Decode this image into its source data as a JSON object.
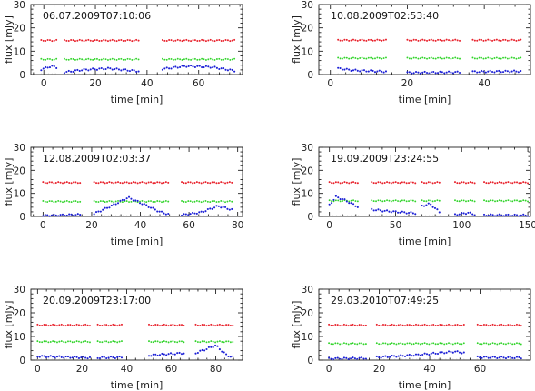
{
  "figure": {
    "xlabel": "time [min]",
    "ylabel": "flux [mJy]",
    "colors": {
      "red": "#e8212b",
      "green": "#31d42a",
      "blue": "#1b1fd6",
      "gray": "#9a9a9a",
      "axis": "#222222"
    }
  },
  "chart_data": [
    {
      "type": "scatter",
      "title": "06.07.2009T07:10:06",
      "xlabel": "time [min]",
      "ylabel": "flux [mJy]",
      "xlim": [
        -5,
        77
      ],
      "ylim": [
        0,
        30
      ],
      "xticks": [
        0,
        20,
        40,
        60
      ],
      "yticks": [
        0,
        10,
        20,
        30
      ],
      "segments": [
        [
          -1,
          5
        ],
        [
          8,
          37
        ],
        [
          46,
          74
        ]
      ],
      "series": [
        {
          "color": "red",
          "knots": [
            [
              -1,
              14.6
            ],
            [
              74,
              14.6
            ]
          ]
        },
        {
          "color": "green",
          "knots": [
            [
              -1,
              6.5
            ],
            [
              74,
              6.5
            ]
          ]
        },
        {
          "color": "blue",
          "knots": [
            [
              -1,
              2.2
            ],
            [
              3,
              3.6
            ],
            [
              5,
              3.0
            ],
            [
              8,
              1.0
            ],
            [
              15,
              2.0
            ],
            [
              25,
              2.6
            ],
            [
              37,
              1.4
            ],
            [
              46,
              2.4
            ],
            [
              55,
              3.6
            ],
            [
              65,
              3.2
            ],
            [
              74,
              1.6
            ]
          ]
        }
      ]
    },
    {
      "type": "scatter",
      "title": "10.08.2009T02:53:40",
      "xlabel": "time [min]",
      "ylabel": "flux [mJy]",
      "xlim": [
        -3,
        52
      ],
      "ylim": [
        0,
        30
      ],
      "xticks": [
        0,
        20,
        40
      ],
      "yticks": [
        0,
        10,
        20,
        30
      ],
      "segments": [
        [
          2,
          15
        ],
        [
          20,
          34
        ],
        [
          37,
          50
        ]
      ],
      "series": [
        {
          "color": "red",
          "knots": [
            [
              2,
              14.7
            ],
            [
              50,
              14.7
            ]
          ]
        },
        {
          "color": "green",
          "knots": [
            [
              2,
              7.0
            ],
            [
              50,
              7.0
            ]
          ]
        },
        {
          "color": "blue",
          "knots": [
            [
              2,
              2.6
            ],
            [
              6,
              1.8
            ],
            [
              15,
              1.2
            ],
            [
              20,
              0.8
            ],
            [
              34,
              1.0
            ],
            [
              37,
              1.2
            ],
            [
              50,
              1.4
            ]
          ]
        }
      ]
    },
    {
      "type": "scatter",
      "title": "12.08.2009T02:03:37",
      "xlabel": "time [min]",
      "ylabel": "flux [mJy]",
      "xlim": [
        -5,
        82
      ],
      "ylim": [
        0,
        30
      ],
      "xticks": [
        0,
        20,
        40,
        60,
        80
      ],
      "yticks": [
        0,
        10,
        20,
        30
      ],
      "segments": [
        [
          0,
          16
        ],
        [
          21,
          52
        ],
        [
          57,
          78
        ]
      ],
      "series": [
        {
          "color": "red",
          "knots": [
            [
              0,
              14.7
            ],
            [
              78,
              14.7
            ]
          ]
        },
        {
          "color": "green",
          "knots": [
            [
              0,
              6.5
            ],
            [
              78,
              6.5
            ]
          ]
        },
        {
          "color": "blue",
          "knots": [
            [
              0,
              0.4
            ],
            [
              16,
              0.8
            ],
            [
              21,
              1.2
            ],
            [
              28,
              4.5
            ],
            [
              35,
              8.2
            ],
            [
              42,
              5.0
            ],
            [
              48,
              2.0
            ],
            [
              52,
              0.8
            ],
            [
              57,
              0.6
            ],
            [
              65,
              1.8
            ],
            [
              72,
              4.5
            ],
            [
              78,
              2.8
            ]
          ]
        }
      ]
    },
    {
      "type": "scatter",
      "title": "19.09.2009T23:24:55",
      "xlabel": "time [min]",
      "ylabel": "flux [mJy]",
      "xlim": [
        -8,
        152
      ],
      "ylim": [
        0,
        30
      ],
      "xticks": [
        0,
        50,
        100,
        150
      ],
      "yticks": [
        0,
        10,
        20,
        30
      ],
      "segments": [
        [
          0,
          22
        ],
        [
          32,
          65
        ],
        [
          70,
          84
        ],
        [
          95,
          110
        ],
        [
          117,
          150
        ]
      ],
      "series": [
        {
          "color": "red",
          "knots": [
            [
              0,
              14.7
            ],
            [
              150,
              14.7
            ]
          ]
        },
        {
          "color": "green",
          "knots": [
            [
              0,
              6.8
            ],
            [
              150,
              6.8
            ]
          ]
        },
        {
          "color": "blue",
          "knots": [
            [
              0,
              5.0
            ],
            [
              5,
              8.5
            ],
            [
              12,
              7.0
            ],
            [
              22,
              4.0
            ],
            [
              32,
              3.0
            ],
            [
              45,
              2.2
            ],
            [
              65,
              1.4
            ],
            [
              70,
              4.5
            ],
            [
              76,
              5.5
            ],
            [
              84,
              1.5
            ],
            [
              95,
              0.8
            ],
            [
              105,
              1.6
            ],
            [
              110,
              0.8
            ],
            [
              117,
              0.6
            ],
            [
              150,
              0.5
            ]
          ]
        }
      ]
    },
    {
      "type": "scatter",
      "title": "20.09.2009T23:17:00",
      "xlabel": "time [min]",
      "ylabel": "flux [mJy]",
      "xlim": [
        -3,
        92
      ],
      "ylim": [
        0,
        30
      ],
      "xticks": [
        0,
        20,
        40,
        60,
        80
      ],
      "yticks": [
        0,
        10,
        20,
        30
      ],
      "segments": [
        [
          0,
          24
        ],
        [
          27,
          38
        ],
        [
          50,
          66
        ],
        [
          71,
          88
        ]
      ],
      "series": [
        {
          "color": "red",
          "knots": [
            [
              0,
              14.8
            ],
            [
              88,
              14.8
            ]
          ]
        },
        {
          "color": "green",
          "knots": [
            [
              0,
              7.8
            ],
            [
              88,
              7.8
            ]
          ]
        },
        {
          "color": "blue",
          "knots": [
            [
              0,
              1.6
            ],
            [
              24,
              1.0
            ],
            [
              27,
              1.0
            ],
            [
              38,
              1.2
            ],
            [
              50,
              2.0
            ],
            [
              66,
              3.0
            ],
            [
              71,
              3.0
            ],
            [
              80,
              6.2
            ],
            [
              85,
              2.0
            ],
            [
              88,
              1.2
            ]
          ]
        }
      ]
    },
    {
      "type": "scatter",
      "title": "29.03.2010T07:49:25",
      "xlabel": "time [min]",
      "ylabel": "flux [mJy]",
      "xlim": [
        -4,
        80
      ],
      "ylim": [
        0,
        30
      ],
      "xticks": [
        0,
        20,
        40,
        60
      ],
      "yticks": [
        0,
        10,
        20,
        30
      ],
      "segments": [
        [
          0,
          15
        ],
        [
          19,
          54
        ],
        [
          59,
          77
        ]
      ],
      "series": [
        {
          "color": "red",
          "knots": [
            [
              0,
              14.8
            ],
            [
              77,
              14.8
            ]
          ]
        },
        {
          "color": "green",
          "knots": [
            [
              0,
              7.0
            ],
            [
              77,
              7.0
            ]
          ]
        },
        {
          "color": "blue",
          "knots": [
            [
              0,
              0.6
            ],
            [
              15,
              0.8
            ],
            [
              19,
              1.2
            ],
            [
              35,
              2.2
            ],
            [
              50,
              3.6
            ],
            [
              54,
              3.0
            ],
            [
              59,
              1.2
            ],
            [
              77,
              1.0
            ]
          ]
        }
      ]
    }
  ]
}
